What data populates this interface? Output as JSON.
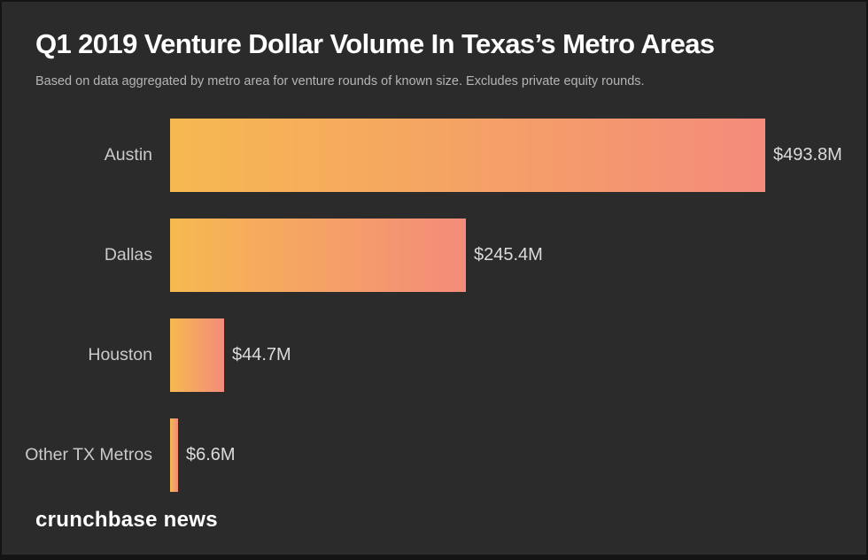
{
  "header": {
    "title": "Q1 2019 Venture Dollar Volume In Texas’s Metro Areas",
    "subtitle": "Based on data aggregated by metro area for venture rounds of known size. Excludes private equity rounds."
  },
  "branding": {
    "logo_text": "crunchbase news"
  },
  "colors": {
    "background": "#2b2b2b",
    "frame": "#141414",
    "bar_gradient_start": "#f6b950",
    "bar_gradient_end": "#f48b7b",
    "category_label": "#c9cacb",
    "value_label": "#dbdbdb",
    "title_text": "#ffffff",
    "subtitle_text": "#b5b5b5"
  },
  "chart_data": {
    "type": "bar",
    "orientation": "horizontal",
    "title": "Q1 2019 Venture Dollar Volume In Texas’s Metro Areas",
    "subtitle": "Based on data aggregated by metro area for venture rounds of known size. Excludes private equity rounds.",
    "categories": [
      "Austin",
      "Dallas",
      "Houston",
      "Other TX Metros"
    ],
    "values": [
      493.8,
      245.4,
      44.7,
      6.6
    ],
    "value_labels": [
      "$493.8M",
      "$245.4M",
      "$44.7M",
      "$6.6M"
    ],
    "unit": "USD millions",
    "xlim": [
      0,
      493.8
    ],
    "grid": false,
    "legend": false,
    "bar_style": "gradient yellow-to-salmon per bar"
  }
}
